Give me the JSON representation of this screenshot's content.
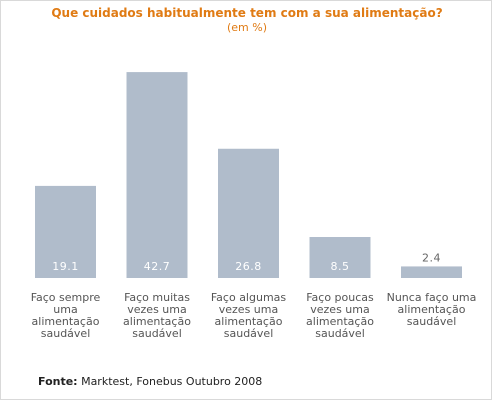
{
  "chart_data": {
    "type": "bar",
    "title": "Que cuidados habitualmente tem com a sua alimentação?",
    "subtitle": "(em %)",
    "categories": [
      [
        "Faço sempre",
        "uma",
        "alimentação",
        "saudável"
      ],
      [
        "Faço muitas",
        "vezes uma",
        "alimentação",
        "saudável"
      ],
      [
        "Faço algumas",
        "vezes uma",
        "alimentação",
        "saudável"
      ],
      [
        "Faço poucas",
        "vezes uma",
        "alimentação",
        "saudável"
      ],
      [
        "Nunca faço uma",
        "alimentação",
        "saudável"
      ]
    ],
    "values": [
      19.1,
      42.7,
      26.8,
      8.5,
      2.4
    ],
    "value_labels": [
      "19.1",
      "42.7",
      "26.8",
      "8.5",
      "2.4"
    ],
    "ylim": [
      0,
      45
    ],
    "grid": false,
    "legend": "none",
    "bar_color": "#b0bccb",
    "value_label_color_inside": "#ffffff",
    "value_label_color_outside": "#666666",
    "title_color": "#e07b14"
  },
  "source": {
    "label": "Fonte:",
    "text": "Marktest, Fonebus Outubro 2008"
  }
}
